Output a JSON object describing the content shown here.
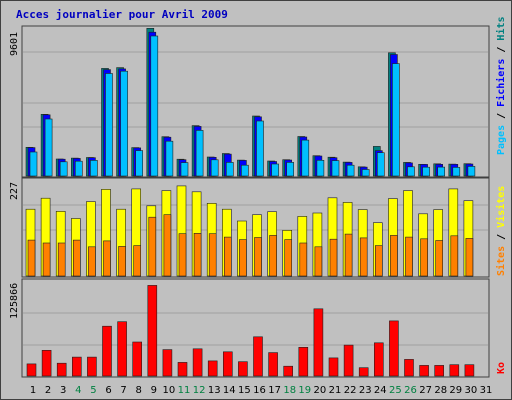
{
  "chart_data": [
    {
      "type": "bar",
      "title": "Acces journalier pour Avril 2009",
      "categories": [
        "1",
        "2",
        "3",
        "4",
        "5",
        "6",
        "7",
        "8",
        "9",
        "10",
        "11",
        "12",
        "13",
        "14",
        "15",
        "16",
        "17",
        "18",
        "19",
        "20",
        "21",
        "22",
        "23",
        "24",
        "25",
        "26",
        "27",
        "28",
        "29",
        "30",
        "31"
      ],
      "weekend_days": [
        "4",
        "5",
        "11",
        "12",
        "18",
        "19",
        "25",
        "26"
      ],
      "ymax_label": "9601",
      "ylim": [
        0,
        9601
      ],
      "series": [
        {
          "name": "Pages",
          "color": "#00c0ff",
          "values": [
            1560,
            3700,
            920,
            960,
            1010,
            6650,
            6800,
            1650,
            9080,
            2260,
            870,
            2960,
            1050,
            880,
            700,
            3570,
            780,
            880,
            2330,
            1020,
            1000,
            700,
            420,
            1510,
            7290,
            600,
            570,
            580,
            560,
            620,
            0
          ]
        },
        {
          "name": "Fichiers",
          "color": "#0000ff",
          "values": [
            1840,
            3970,
            1090,
            1140,
            1190,
            6900,
            6950,
            1820,
            9330,
            2520,
            1060,
            3220,
            1210,
            1420,
            1010,
            3840,
            940,
            1040,
            2530,
            1300,
            1190,
            880,
            580,
            1650,
            7880,
            850,
            750,
            760,
            760,
            780,
            0
          ]
        },
        {
          "name": "Hits",
          "color": "#008080",
          "values": [
            1860,
            4000,
            1100,
            1160,
            1200,
            6980,
            7030,
            1840,
            9580,
            2550,
            1090,
            3270,
            1230,
            1460,
            1030,
            3890,
            970,
            1060,
            2560,
            1320,
            1220,
            900,
            600,
            1920,
            7990,
            880,
            760,
            790,
            770,
            800,
            0
          ]
        }
      ],
      "grid": true,
      "legend": "right"
    },
    {
      "type": "bar",
      "categories": [
        "1",
        "2",
        "3",
        "4",
        "5",
        "6",
        "7",
        "8",
        "9",
        "10",
        "11",
        "12",
        "13",
        "14",
        "15",
        "16",
        "17",
        "18",
        "19",
        "20",
        "21",
        "22",
        "23",
        "24",
        "25",
        "26",
        "27",
        "28",
        "29",
        "30",
        "31"
      ],
      "ymax_label": "227",
      "ylim": [
        0,
        227
      ],
      "series": [
        {
          "name": "Visites",
          "color": "#ffff00",
          "values": [
            158,
            184,
            153,
            136,
            176,
            205,
            158,
            206,
            166,
            202,
            213,
            199,
            172,
            158,
            130,
            145,
            152,
            108,
            141,
            149,
            185,
            174,
            157,
            126,
            183,
            202,
            147,
            157,
            206,
            178,
            0
          ]
        },
        {
          "name": "Sites",
          "color": "#ff8000",
          "values": [
            85,
            78,
            78,
            85,
            69,
            83,
            70,
            72,
            139,
            145,
            100,
            101,
            100,
            92,
            86,
            91,
            96,
            86,
            78,
            69,
            87,
            99,
            90,
            72,
            96,
            92,
            88,
            84,
            95,
            89,
            0
          ]
        }
      ],
      "grid": true,
      "legend": "right"
    },
    {
      "type": "bar",
      "categories": [
        "1",
        "2",
        "3",
        "4",
        "5",
        "6",
        "7",
        "8",
        "9",
        "10",
        "11",
        "12",
        "13",
        "14",
        "15",
        "16",
        "17",
        "18",
        "19",
        "20",
        "21",
        "22",
        "23",
        "24",
        "25",
        "26",
        "27",
        "28",
        "29",
        "30",
        "31"
      ],
      "ymax_label": "125866",
      "ylim": [
        0,
        125866
      ],
      "series": [
        {
          "name": "Ko",
          "color": "#ff0000",
          "values": [
            16000,
            34000,
            17000,
            25000,
            25000,
            66000,
            72000,
            45000,
            120000,
            35000,
            18000,
            36000,
            20000,
            32000,
            19000,
            52000,
            31000,
            13000,
            38000,
            89000,
            24000,
            41000,
            11000,
            44000,
            73000,
            22000,
            14000,
            14000,
            15000,
            15000,
            0
          ]
        }
      ],
      "grid": true,
      "legend": "right"
    }
  ],
  "colors": {
    "title": "#0000c0",
    "weekday_label": "#000000",
    "weekend_label": "#008040",
    "frame": "#c0c0c0",
    "plot_border": "#404040",
    "grid": "#808080"
  }
}
